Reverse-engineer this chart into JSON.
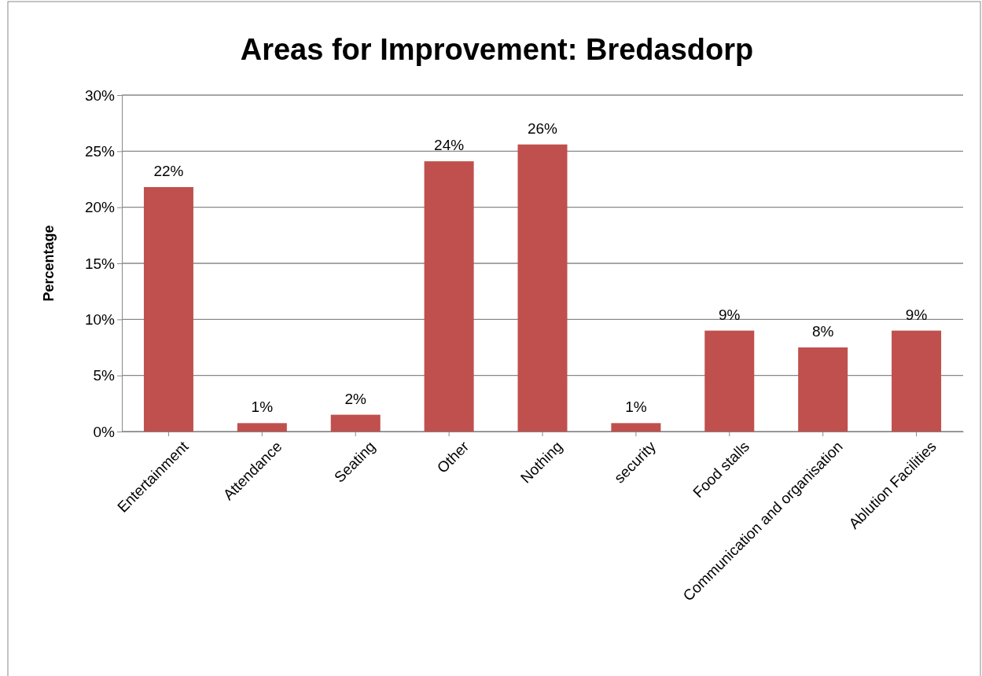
{
  "chart_data": {
    "type": "bar",
    "title": "Areas for Improvement: Bredasdorp",
    "ylabel": "Percentage",
    "categories": [
      "Entertainment",
      "Attendance",
      "Seating",
      "Other",
      "Nothing",
      "security",
      "Food stalls",
      "Communication and organisation",
      "Ablution Facilities"
    ],
    "values": [
      21.8,
      0.75,
      1.5,
      24.1,
      25.6,
      0.75,
      9.0,
      7.5,
      9.0
    ],
    "value_labels": [
      "22%",
      "1%",
      "2%",
      "24%",
      "26%",
      "1%",
      "9%",
      "8%",
      "9%"
    ],
    "color": "#c0504d",
    "ylim": [
      0,
      30
    ],
    "yticks": [
      {
        "value": 0,
        "label": "0%"
      },
      {
        "value": 5,
        "label": "5%"
      },
      {
        "value": 10,
        "label": "10%"
      },
      {
        "value": 15,
        "label": "15%"
      },
      {
        "value": 20,
        "label": "20%"
      },
      {
        "value": 25,
        "label": "25%"
      },
      {
        "value": 30,
        "label": "30%"
      }
    ],
    "grid": "y"
  }
}
